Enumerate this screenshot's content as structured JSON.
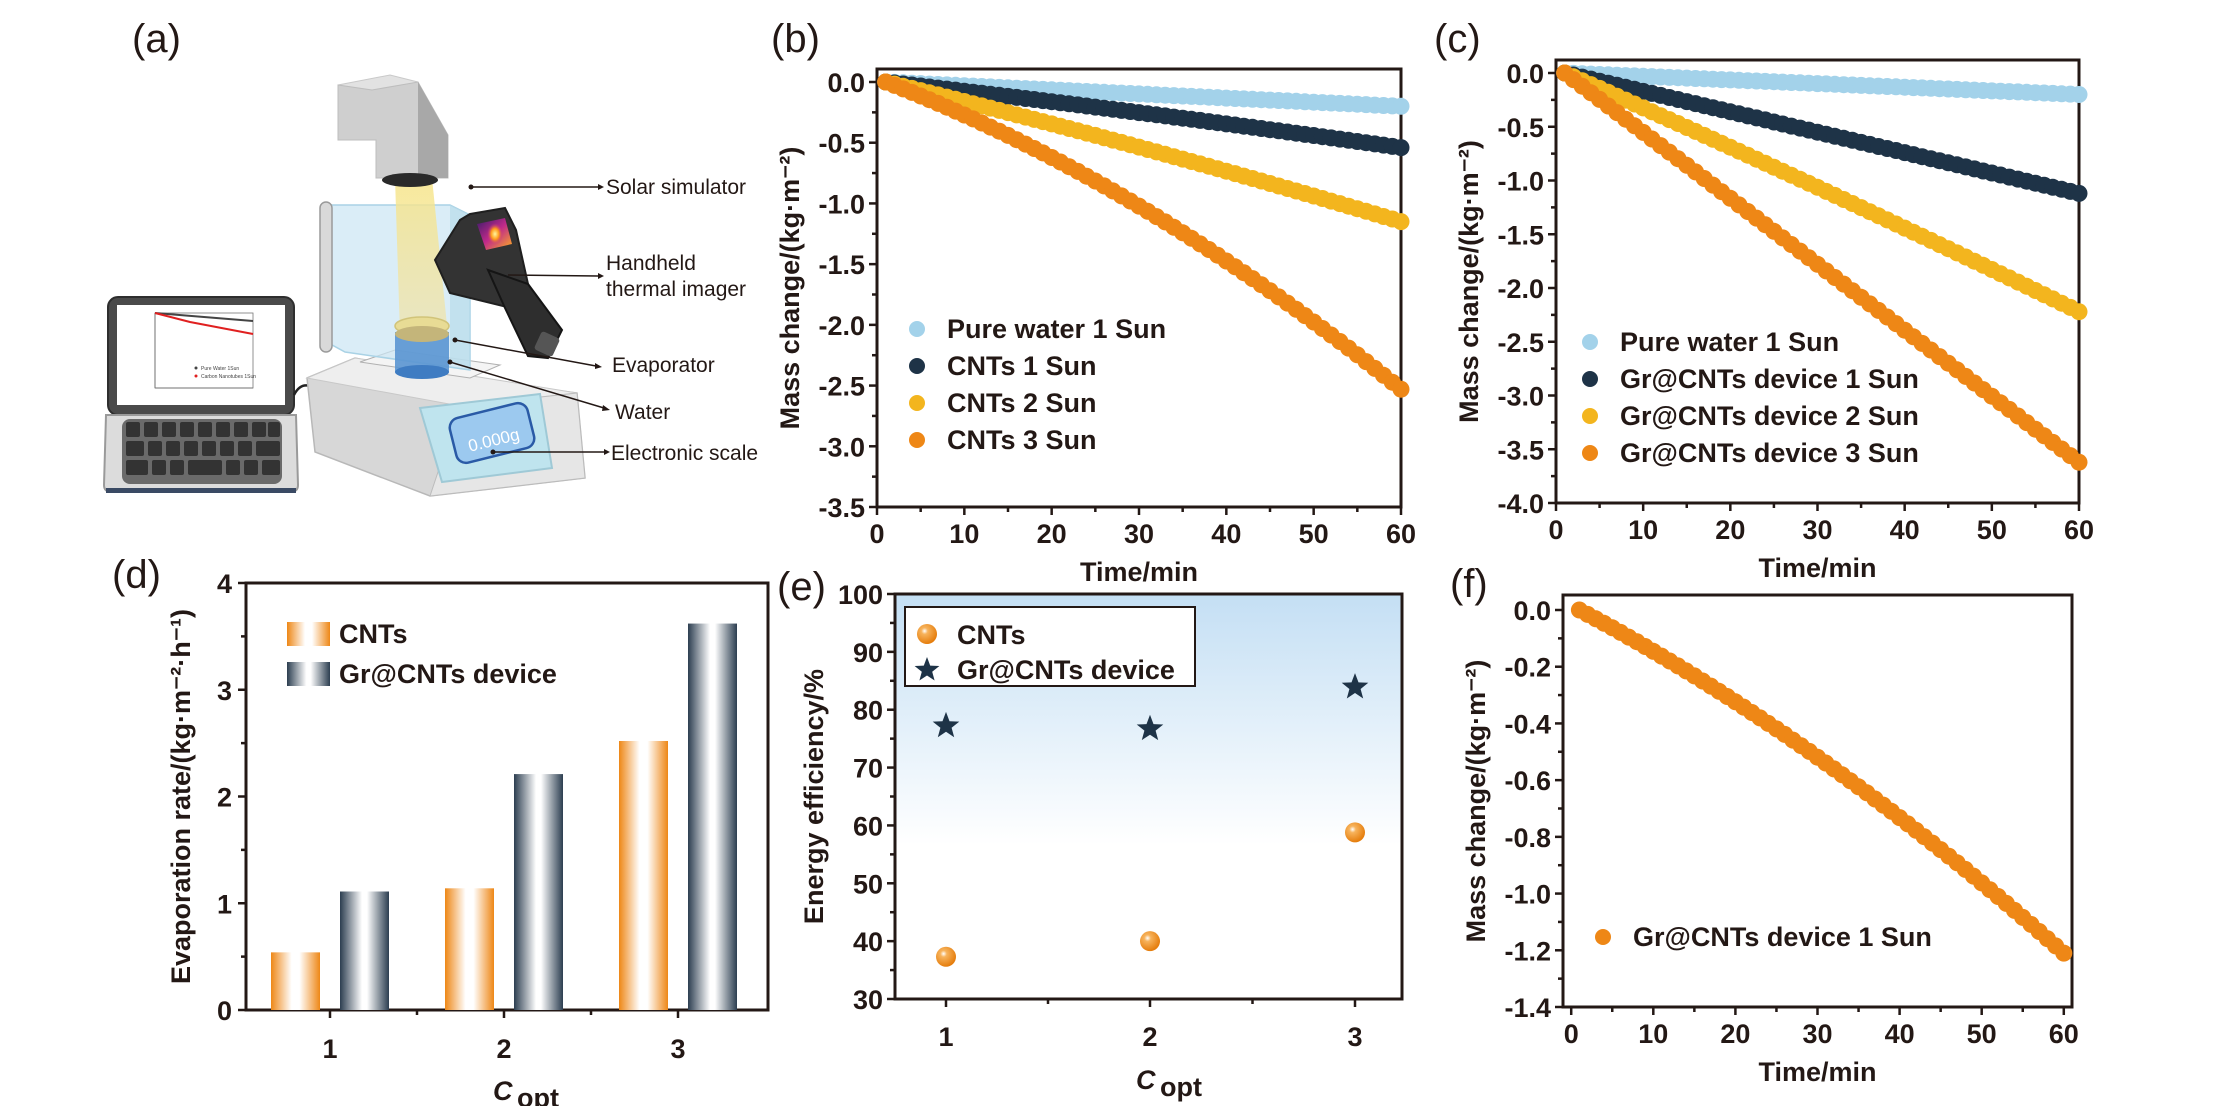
{
  "figure": {
    "panel_labels": [
      "(a)",
      "(b)",
      "(c)",
      "(d)",
      "(e)",
      "(f)"
    ]
  },
  "illustration": {
    "callouts": [
      "Solar simulator",
      "Handheld",
      "thermal imager",
      "Evaporator",
      "Water",
      "Electronic scale"
    ],
    "scale_display": "0.000g",
    "laptop_legend": [
      "Pure Water 1Sun",
      "Carbon Nanotubes 1Sun"
    ]
  },
  "chart_data": [
    {
      "panel": "(b)",
      "type": "scatter",
      "title": "",
      "xlabel": "Time/min",
      "ylabel": "Mass change/(kg·m⁻²)",
      "xlim": [
        0,
        60
      ],
      "ylim": [
        -3.5,
        0.0
      ],
      "xticks": [
        0,
        10,
        20,
        30,
        40,
        50,
        60
      ],
      "yticks": [
        0.0,
        -0.5,
        -1.0,
        -1.5,
        -2.0,
        -2.5,
        -3.0,
        -3.5
      ],
      "ytick_labels": [
        "0.0",
        "-0.5",
        "-1.0",
        "-1.5",
        "-2.0",
        "-2.5",
        "-3.0",
        "-3.5"
      ],
      "legend_position": "lower-left",
      "series": [
        {
          "name": "Pure water 1 Sun",
          "color": "#a3d2ea",
          "x_range": [
            1,
            60
          ],
          "end_value": -0.2,
          "curvature": 0.0
        },
        {
          "name": "CNTs 1 Sun",
          "color": "#1e3347",
          "x_range": [
            1,
            60
          ],
          "end_value": -0.54,
          "curvature": 0.1
        },
        {
          "name": "CNTs 2 Sun",
          "color": "#f3b51e",
          "x_range": [
            1,
            60
          ],
          "end_value": -1.15,
          "curvature": 0.1
        },
        {
          "name": "CNTs 3 Sun",
          "color": "#ee8716",
          "x_range": [
            1,
            60
          ],
          "end_value": -2.53,
          "curvature": 0.35
        }
      ]
    },
    {
      "panel": "(c)",
      "type": "scatter",
      "title": "",
      "xlabel": "Time/min",
      "ylabel": "Mass change/(kg·m⁻²)",
      "xlim": [
        0,
        60
      ],
      "ylim": [
        -4.0,
        0.0
      ],
      "xticks": [
        0,
        10,
        20,
        30,
        40,
        50,
        60
      ],
      "yticks": [
        0.0,
        -0.5,
        -1.0,
        -1.5,
        -2.0,
        -2.5,
        -3.0,
        -3.5,
        -4.0
      ],
      "ytick_labels": [
        "0.0",
        "-0.5",
        "-1.0",
        "-1.5",
        "-2.0",
        "-2.5",
        "-3.0",
        "-3.5",
        "-4.0"
      ],
      "legend_position": "lower-left",
      "series": [
        {
          "name": "Pure water 1 Sun",
          "color": "#a3d2ea",
          "x_range": [
            1,
            60
          ],
          "end_value": -0.2,
          "curvature": 0.0
        },
        {
          "name": "Gr@CNTs device 1 Sun",
          "color": "#1e3347",
          "x_range": [
            1,
            60
          ],
          "end_value": -1.12,
          "curvature": 0.0
        },
        {
          "name": "Gr@CNTs device 2 Sun",
          "color": "#f3b51e",
          "x_range": [
            1,
            60
          ],
          "end_value": -2.22,
          "curvature": 0.05
        },
        {
          "name": "Gr@CNTs device 3 Sun",
          "color": "#ee8716",
          "x_range": [
            1,
            60
          ],
          "end_value": -3.62,
          "curvature": 0.0
        }
      ]
    },
    {
      "panel": "(d)",
      "type": "bar",
      "title": "",
      "xlabel": "C",
      "xlabel_sub": "opt",
      "ylabel": "Evaporation rate/(kg·m⁻²·h⁻¹)",
      "categories": [
        "1",
        "2",
        "3"
      ],
      "ylim": [
        0,
        4
      ],
      "yticks": [
        0,
        1,
        2,
        3,
        4
      ],
      "legend_position": "top-left",
      "series": [
        {
          "name": "CNTs",
          "color": "#ee8716",
          "values": [
            0.54,
            1.14,
            2.52
          ]
        },
        {
          "name": "Gr@CNTs device",
          "color": "#2c3e50",
          "values": [
            1.11,
            2.21,
            3.62
          ]
        }
      ]
    },
    {
      "panel": "(e)",
      "type": "scatter",
      "title": "",
      "xlabel": "C",
      "xlabel_sub": "opt",
      "ylabel": "Energy efficiency/%",
      "categories": [
        "1",
        "2",
        "3"
      ],
      "ylim": [
        30,
        100
      ],
      "yticks": [
        30,
        40,
        50,
        60,
        70,
        80,
        90,
        100
      ],
      "legend_position": "top-left",
      "series": [
        {
          "name": "CNTs",
          "marker": "sphere",
          "color": "#ee8716",
          "values": [
            37.3,
            40.0,
            58.8
          ]
        },
        {
          "name": "Gr@CNTs device",
          "marker": "star",
          "color": "#1e3347",
          "values": [
            77.2,
            76.7,
            83.9
          ]
        }
      ]
    },
    {
      "panel": "(f)",
      "type": "scatter",
      "title": "",
      "xlabel": "Time/min",
      "ylabel": "Mass change/(kg·m⁻²)",
      "xlim": [
        -1,
        61
      ],
      "ylim": [
        -1.4,
        0.0
      ],
      "xticks": [
        0,
        10,
        20,
        30,
        40,
        50,
        60
      ],
      "yticks": [
        0.0,
        -0.2,
        -0.4,
        -0.6,
        -0.8,
        -1.0,
        -1.2,
        -1.4
      ],
      "ytick_labels": [
        "0.0",
        "-0.2",
        "-0.4",
        "-0.6",
        "-0.8",
        "-1.0",
        "-1.2",
        "-1.4"
      ],
      "legend_position": "lower-left",
      "series": [
        {
          "name": "Gr@CNTs device 1 Sun",
          "color": "#ee8716",
          "x_range": [
            1,
            60
          ],
          "end_value": -1.21,
          "curvature": 0.25
        }
      ]
    }
  ]
}
